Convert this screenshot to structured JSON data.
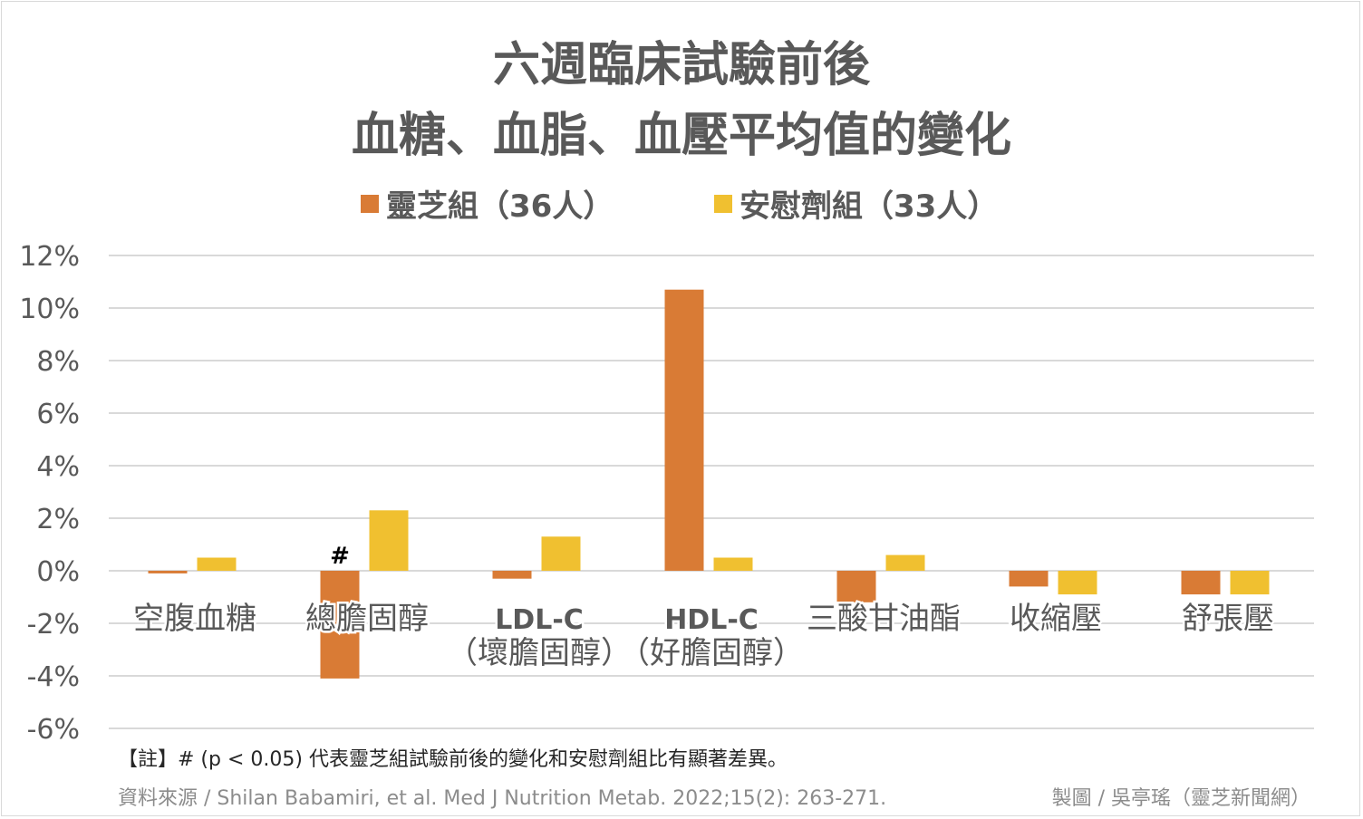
{
  "chart_data": {
    "type": "bar",
    "title": [
      "六週臨床試驗前後",
      "血糖、血脂、血壓平均值的變化"
    ],
    "categories": [
      [
        "空腹血糖"
      ],
      [
        "總膽固醇"
      ],
      [
        "LDL-C",
        "（壞膽固醇）"
      ],
      [
        "HDL-C",
        "（好膽固醇）"
      ],
      [
        "三酸甘油酯"
      ],
      [
        "收縮壓"
      ],
      [
        "舒張壓"
      ]
    ],
    "series": [
      {
        "name": "靈芝組（36人）",
        "color": "#d97b35",
        "values": [
          -0.1,
          -4.1,
          -0.3,
          10.7,
          -1.2,
          -0.6,
          -0.9
        ]
      },
      {
        "name": "安慰劑組（33人）",
        "color": "#f0c030",
        "values": [
          0.5,
          2.3,
          1.3,
          0.5,
          0.6,
          -0.9,
          -0.9
        ]
      }
    ],
    "ylim": [
      -6,
      12
    ],
    "yticks": [
      12,
      10,
      8,
      6,
      4,
      2,
      0,
      -2,
      -4,
      -6
    ],
    "ytick_labels": [
      "12%",
      "10%",
      "8%",
      "6%",
      "4%",
      "2%",
      "0%",
      "-2%",
      "-4%",
      "-6%"
    ],
    "annotations": [
      {
        "category_index": 1,
        "series_index": 0,
        "text": "#"
      }
    ],
    "xlabel": "",
    "ylabel": "",
    "grid": true,
    "legend_position": "top-center"
  },
  "footnote": "【註】# (p < 0.05) 代表靈芝組試驗前後的變化和安慰劑組比有顯著差異。",
  "source": "資料來源 / Shilan Babamiri, et al. Med J Nutrition Metab. 2022;15(2): 263-271.",
  "credit": "製圖 / 吳亭瑤（靈芝新聞網）"
}
